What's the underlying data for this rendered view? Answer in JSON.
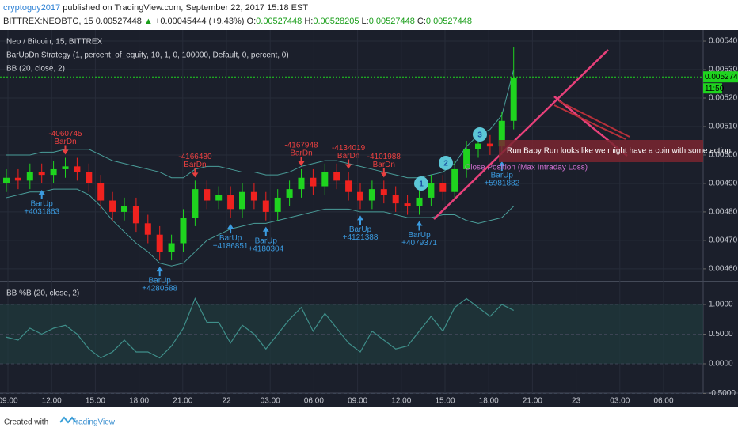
{
  "header": {
    "author": "cryptoguy2017",
    "published": "published on TradingView.com, September 22, 2017 15:18 EST",
    "symbol": "BITTREX:NEOBTC, 15",
    "last": "0.00527448",
    "change": "+0.00045444 (+9.43%)",
    "o_label": "O:",
    "o": "0.00527448",
    "h_label": "H:",
    "h": "0.00528205",
    "l_label": "L:",
    "l": "0.00527448",
    "c_label": "C:",
    "c": "0.00527448"
  },
  "chart_data": [
    {
      "type": "candlestick",
      "title": "Neo / Bitcoin, 15, BITTREX",
      "strategy_label": "BarUpDn Strategy (1, percent_of_equity, 10, 1, 0, 100000, Default, 0, percent, 0)",
      "bb_label": "BB (20, close, 2)",
      "up_color": "#1fd41f",
      "down_color": "#f0221f",
      "band_color": "#4a9e9a",
      "open": [
        0.0049,
        0.00492,
        0.00491,
        0.00494,
        0.00493,
        0.00495,
        0.00496,
        0.00494,
        0.0049,
        0.00484,
        0.0048,
        0.00482,
        0.00476,
        0.00472,
        0.00466,
        0.00469,
        0.00478,
        0.00488,
        0.00484,
        0.00486,
        0.00481,
        0.00487,
        0.00484,
        0.0048,
        0.00485,
        0.00488,
        0.00492,
        0.00489,
        0.00494,
        0.00491,
        0.00487,
        0.00484,
        0.00488,
        0.00486,
        0.00483,
        0.00482,
        0.00485,
        0.0049,
        0.00487,
        0.00495,
        0.00502,
        0.00504,
        0.00503,
        0.00512
      ],
      "high": [
        0.00495,
        0.00495,
        0.00497,
        0.00497,
        0.00498,
        0.00499,
        0.00499,
        0.00497,
        0.00493,
        0.00487,
        0.00485,
        0.00485,
        0.00479,
        0.00475,
        0.00472,
        0.00481,
        0.00491,
        0.00491,
        0.00489,
        0.00489,
        0.0049,
        0.0049,
        0.00487,
        0.00488,
        0.00491,
        0.00495,
        0.00495,
        0.00497,
        0.00497,
        0.00494,
        0.0049,
        0.00491,
        0.00491,
        0.00489,
        0.00486,
        0.00488,
        0.00493,
        0.00493,
        0.00498,
        0.00505,
        0.00507,
        0.00507,
        0.00515,
        0.00538
      ],
      "low": [
        0.00487,
        0.00488,
        0.00488,
        0.0049,
        0.0049,
        0.00492,
        0.00491,
        0.00487,
        0.00481,
        0.00477,
        0.00477,
        0.00473,
        0.00469,
        0.00463,
        0.00463,
        0.00466,
        0.00475,
        0.00481,
        0.00481,
        0.00478,
        0.00478,
        0.00481,
        0.00477,
        0.00477,
        0.00482,
        0.00485,
        0.00486,
        0.00486,
        0.00488,
        0.00484,
        0.00481,
        0.00481,
        0.00483,
        0.0048,
        0.00479,
        0.00479,
        0.00482,
        0.00484,
        0.00484,
        0.00492,
        0.00499,
        0.005,
        0.005,
        0.00509
      ],
      "close": [
        0.00492,
        0.00491,
        0.00494,
        0.00493,
        0.00495,
        0.00496,
        0.00494,
        0.0049,
        0.00484,
        0.0048,
        0.00482,
        0.00476,
        0.00472,
        0.00466,
        0.00469,
        0.00478,
        0.00488,
        0.00484,
        0.00486,
        0.00481,
        0.00487,
        0.00484,
        0.0048,
        0.00485,
        0.00488,
        0.00492,
        0.00489,
        0.00494,
        0.00491,
        0.00487,
        0.00484,
        0.00488,
        0.00486,
        0.00483,
        0.00482,
        0.00485,
        0.0049,
        0.00487,
        0.00495,
        0.00502,
        0.00504,
        0.00503,
        0.00512,
        0.00527
      ],
      "bb_upper": [
        0.005,
        0.005,
        0.005,
        0.00501,
        0.00501,
        0.00502,
        0.00502,
        0.00502,
        0.005,
        0.00498,
        0.00497,
        0.00496,
        0.00495,
        0.00494,
        0.00492,
        0.00492,
        0.00495,
        0.00496,
        0.00496,
        0.00495,
        0.00494,
        0.00494,
        0.00493,
        0.00493,
        0.00494,
        0.00496,
        0.00497,
        0.00498,
        0.00498,
        0.00497,
        0.00496,
        0.00495,
        0.00494,
        0.00493,
        0.00492,
        0.00492,
        0.00493,
        0.00494,
        0.00497,
        0.00503,
        0.00507,
        0.00509,
        0.00514,
        0.0053
      ],
      "bb_lower": [
        0.00485,
        0.00486,
        0.00487,
        0.00487,
        0.00488,
        0.00488,
        0.00488,
        0.00486,
        0.00482,
        0.00477,
        0.00473,
        0.00469,
        0.00466,
        0.00462,
        0.00461,
        0.00462,
        0.00466,
        0.0047,
        0.00472,
        0.00474,
        0.00475,
        0.00476,
        0.00476,
        0.00477,
        0.00478,
        0.00479,
        0.0048,
        0.00481,
        0.00481,
        0.00481,
        0.0048,
        0.0048,
        0.0048,
        0.00479,
        0.00478,
        0.00478,
        0.00478,
        0.00479,
        0.00479,
        0.00477,
        0.00476,
        0.00477,
        0.00478,
        0.00482
      ],
      "ylim": [
        0.004558,
        0.005439
      ],
      "yticks": [
        {
          "value": 0.0054,
          "label": "0.00540"
        },
        {
          "value": 0.0053,
          "label": "0.00530"
        },
        {
          "value": 0.0052,
          "label": "0.00520"
        },
        {
          "value": 0.0051,
          "label": "0.00510"
        },
        {
          "value": 0.005,
          "label": "0.00500"
        },
        {
          "value": 0.0049,
          "label": "0.00490"
        },
        {
          "value": 0.0048,
          "label": "0.00480"
        },
        {
          "value": 0.0047,
          "label": "0.00470"
        },
        {
          "value": 0.0046,
          "label": "0.00460"
        }
      ],
      "last_price": 0.00527448,
      "countdown": "11:50",
      "time_axis": [
        "09:00",
        "12:00",
        "15:00",
        "18:00",
        "21:00",
        "22",
        "03:00",
        "06:00",
        "09:00",
        "12:00",
        "15:00",
        "18:00",
        "21:00",
        "23",
        "03:00",
        "06:00"
      ],
      "signals": [
        {
          "label": "BarUp",
          "amount": "+4031863"
        },
        {
          "label": "BarDn",
          "amount": "-4060745"
        },
        {
          "label": "BarUp",
          "amount": "+4280588"
        },
        {
          "label": "BarDn",
          "amount": "-4166480"
        },
        {
          "label": "BarUp",
          "amount": "+4186851"
        },
        {
          "label": "BarUp",
          "amount": "+4180304"
        },
        {
          "label": "BarDn",
          "amount": "-4167948"
        },
        {
          "label": "BarDn",
          "amount": "-4134019"
        },
        {
          "label": "BarUp",
          "amount": "+4121388"
        },
        {
          "label": "BarDn",
          "amount": "-4101988"
        },
        {
          "label": "BarUp",
          "amount": "+4079371"
        },
        {
          "label": "BarUp",
          "amount": "+5981882"
        }
      ],
      "close_position": "Close Position (Max Intraday Loss)",
      "bubbles": [
        "1",
        "2",
        "3"
      ],
      "annotation": "Run Baby Run looks like we might have a coin with some action"
    },
    {
      "type": "line",
      "title": "BB %B (20, close, 2)",
      "color": "#3f8f8a",
      "values": [
        0.45,
        0.4,
        0.6,
        0.5,
        0.6,
        0.65,
        0.5,
        0.25,
        0.1,
        0.2,
        0.4,
        0.2,
        0.2,
        0.1,
        0.3,
        0.6,
        1.1,
        0.7,
        0.7,
        0.35,
        0.65,
        0.5,
        0.25,
        0.5,
        0.75,
        0.95,
        0.55,
        0.85,
        0.6,
        0.35,
        0.2,
        0.55,
        0.4,
        0.25,
        0.3,
        0.55,
        0.8,
        0.55,
        0.95,
        1.1,
        0.95,
        0.8,
        1.0,
        0.9
      ],
      "ylim": [
        -0.467,
        1.36
      ],
      "yticks": [
        {
          "value": 1,
          "label": "1.0000"
        },
        {
          "value": 0.5,
          "label": "0.5000"
        },
        {
          "value": 0,
          "label": "0.0000"
        },
        {
          "value": -0.5,
          "label": "-0.5000"
        }
      ]
    }
  ],
  "footer": {
    "created": "Created with",
    "brand": "TradingView"
  }
}
